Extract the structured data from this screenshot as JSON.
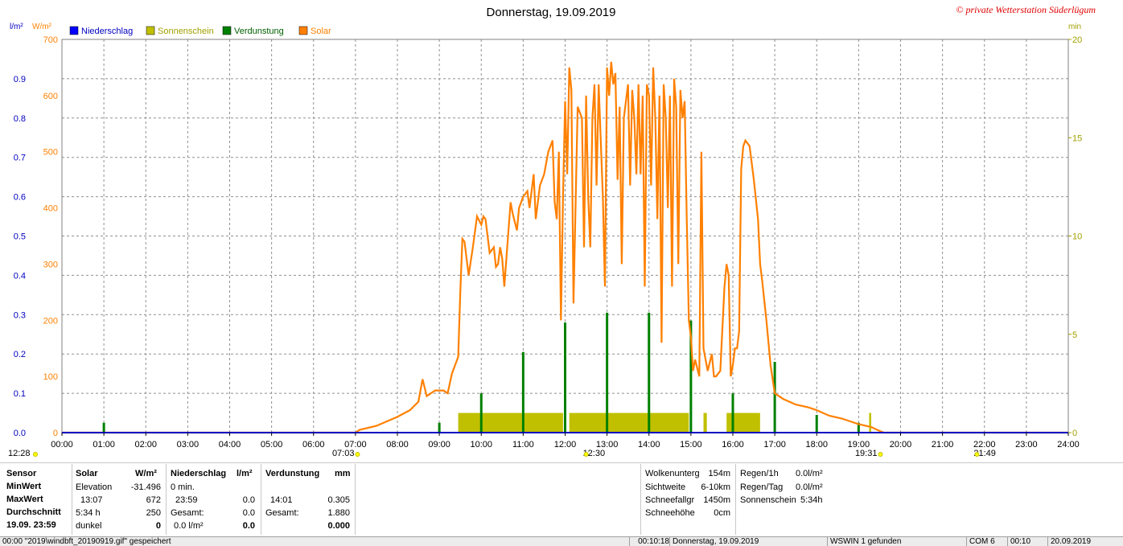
{
  "header": {
    "title": "Donnerstag, 19.09.2019",
    "copyright": "© private Wetterstation Süderlügum",
    "left_unit_1": "l/m²",
    "left_unit_2": "W/m²",
    "right_unit": "min"
  },
  "colors": {
    "niederschlag": "#0000ff",
    "sonnenschein": "#c0c000",
    "verdunstung": "#008000",
    "solar": "#ff8000"
  },
  "chart_data": {
    "type": "line",
    "title": "Donnerstag, 19.09.2019",
    "legend": [
      "Niederschlag",
      "Sonnenschein",
      "Verdunstung",
      "Solar"
    ],
    "legend_position": "top-left",
    "grid": true,
    "x_ticks": [
      "00:00",
      "01:00",
      "02:00",
      "03:00",
      "04:00",
      "05:00",
      "06:00",
      "07:00",
      "08:00",
      "09:00",
      "10:00",
      "11:00",
      "12:00",
      "13:00",
      "14:00",
      "15:00",
      "16:00",
      "17:00",
      "18:00",
      "19:00",
      "20:00",
      "21:00",
      "22:00",
      "23:00",
      "24:00"
    ],
    "y_left_precip_ticks": [
      "0.0",
      "0.1",
      "0.2",
      "0.3",
      "0.4",
      "0.5",
      "0.6",
      "0.7",
      "0.8",
      "0.9"
    ],
    "y_left_precip_range": [
      0,
      1.0
    ],
    "y_left_solar_ticks": [
      "0",
      "100",
      "200",
      "300",
      "400",
      "500",
      "600",
      "700"
    ],
    "y_left_solar_range": [
      0,
      700
    ],
    "y_right_ticks": [
      "0",
      "5",
      "10",
      "15",
      "20"
    ],
    "y_right_range": [
      0,
      20
    ],
    "sun_markers": [
      {
        "label": "12:28",
        "hour": 0.0
      },
      {
        "label": "07:03",
        "hour": 7.05
      },
      {
        "label": "12:30",
        "hour": 12.5
      },
      {
        "label": "19:31",
        "hour": 19.52
      },
      {
        "label": "21:49",
        "hour": 21.82
      }
    ],
    "solar": {
      "name": "Solar",
      "unit": "W/m²",
      "points": [
        [
          0,
          0
        ],
        [
          7.0,
          0
        ],
        [
          7.1,
          5
        ],
        [
          7.5,
          12
        ],
        [
          8.0,
          28
        ],
        [
          8.3,
          40
        ],
        [
          8.5,
          55
        ],
        [
          8.6,
          95
        ],
        [
          8.7,
          65
        ],
        [
          8.9,
          75
        ],
        [
          9.1,
          75
        ],
        [
          9.2,
          70
        ],
        [
          9.3,
          105
        ],
        [
          9.45,
          135
        ],
        [
          9.5,
          250
        ],
        [
          9.55,
          345
        ],
        [
          9.6,
          340
        ],
        [
          9.7,
          280
        ],
        [
          9.8,
          330
        ],
        [
          9.9,
          385
        ],
        [
          10.0,
          370
        ],
        [
          10.05,
          385
        ],
        [
          10.1,
          380
        ],
        [
          10.2,
          320
        ],
        [
          10.3,
          330
        ],
        [
          10.35,
          295
        ],
        [
          10.4,
          300
        ],
        [
          10.45,
          330
        ],
        [
          10.5,
          310
        ],
        [
          10.55,
          260
        ],
        [
          10.6,
          310
        ],
        [
          10.7,
          410
        ],
        [
          10.75,
          390
        ],
        [
          10.85,
          360
        ],
        [
          10.9,
          400
        ],
        [
          11.0,
          420
        ],
        [
          11.1,
          430
        ],
        [
          11.15,
          400
        ],
        [
          11.25,
          460
        ],
        [
          11.3,
          380
        ],
        [
          11.4,
          440
        ],
        [
          11.5,
          460
        ],
        [
          11.6,
          500
        ],
        [
          11.7,
          520
        ],
        [
          11.75,
          410
        ],
        [
          11.8,
          380
        ],
        [
          11.85,
          500
        ],
        [
          11.9,
          200
        ],
        [
          11.95,
          420
        ],
        [
          12.0,
          590
        ],
        [
          12.05,
          460
        ],
        [
          12.1,
          650
        ],
        [
          12.15,
          610
        ],
        [
          12.2,
          230
        ],
        [
          12.3,
          580
        ],
        [
          12.4,
          560
        ],
        [
          12.45,
          330
        ],
        [
          12.5,
          600
        ],
        [
          12.55,
          420
        ],
        [
          12.6,
          330
        ],
        [
          12.65,
          560
        ],
        [
          12.7,
          620
        ],
        [
          12.75,
          440
        ],
        [
          12.8,
          620
        ],
        [
          12.9,
          420
        ],
        [
          12.95,
          260
        ],
        [
          13.0,
          650
        ],
        [
          13.05,
          600
        ],
        [
          13.1,
          660
        ],
        [
          13.15,
          620
        ],
        [
          13.2,
          640
        ],
        [
          13.25,
          450
        ],
        [
          13.3,
          580
        ],
        [
          13.35,
          300
        ],
        [
          13.4,
          560
        ],
        [
          13.5,
          620
        ],
        [
          13.55,
          440
        ],
        [
          13.6,
          610
        ],
        [
          13.65,
          560
        ],
        [
          13.7,
          460
        ],
        [
          13.75,
          620
        ],
        [
          13.8,
          460
        ],
        [
          13.85,
          600
        ],
        [
          13.9,
          260
        ],
        [
          13.95,
          620
        ],
        [
          14.0,
          600
        ],
        [
          14.05,
          440
        ],
        [
          14.1,
          650
        ],
        [
          14.15,
          560
        ],
        [
          14.2,
          380
        ],
        [
          14.25,
          600
        ],
        [
          14.3,
          160
        ],
        [
          14.35,
          620
        ],
        [
          14.4,
          560
        ],
        [
          14.45,
          400
        ],
        [
          14.5,
          600
        ],
        [
          14.55,
          260
        ],
        [
          14.6,
          630
        ],
        [
          14.65,
          580
        ],
        [
          14.7,
          300
        ],
        [
          14.75,
          610
        ],
        [
          14.8,
          560
        ],
        [
          14.85,
          590
        ],
        [
          14.9,
          380
        ],
        [
          14.95,
          200
        ],
        [
          15.0,
          170
        ],
        [
          15.05,
          110
        ],
        [
          15.1,
          130
        ],
        [
          15.2,
          100
        ],
        [
          15.25,
          500
        ],
        [
          15.3,
          150
        ],
        [
          15.4,
          110
        ],
        [
          15.5,
          140
        ],
        [
          15.55,
          100
        ],
        [
          15.6,
          100
        ],
        [
          15.7,
          110
        ],
        [
          15.8,
          260
        ],
        [
          15.85,
          300
        ],
        [
          15.9,
          280
        ],
        [
          15.95,
          100
        ],
        [
          16.0,
          120
        ],
        [
          16.05,
          150
        ],
        [
          16.1,
          150
        ],
        [
          16.15,
          180
        ],
        [
          16.2,
          470
        ],
        [
          16.25,
          510
        ],
        [
          16.3,
          520
        ],
        [
          16.4,
          510
        ],
        [
          16.5,
          450
        ],
        [
          16.6,
          380
        ],
        [
          16.65,
          300
        ],
        [
          16.7,
          270
        ],
        [
          16.8,
          200
        ],
        [
          16.9,
          120
        ],
        [
          17.0,
          70
        ],
        [
          17.2,
          60
        ],
        [
          17.5,
          50
        ],
        [
          17.8,
          45
        ],
        [
          18.0,
          40
        ],
        [
          18.3,
          30
        ],
        [
          18.6,
          25
        ],
        [
          19.0,
          15
        ],
        [
          19.3,
          10
        ],
        [
          19.5,
          3
        ],
        [
          19.6,
          0
        ],
        [
          24,
          0
        ]
      ]
    },
    "sonnenschein": {
      "name": "Sonnenschein",
      "unit": "min",
      "bars": [
        {
          "start": 9.45,
          "end": 11.95,
          "value": 1
        },
        {
          "start": 12.1,
          "end": 14.95,
          "value": 1
        },
        {
          "start": 15.3,
          "end": 15.38,
          "value": 1
        },
        {
          "start": 15.85,
          "end": 16.65,
          "value": 1
        },
        {
          "start": 19.25,
          "end": 19.3,
          "value": 1
        }
      ]
    },
    "verdunstung": {
      "name": "Verdunstung",
      "unit": "mm",
      "bars": [
        {
          "hour": 1.0,
          "value": 0.025
        },
        {
          "hour": 9.0,
          "value": 0.025
        },
        {
          "hour": 10.0,
          "value": 0.1
        },
        {
          "hour": 11.0,
          "value": 0.205
        },
        {
          "hour": 12.0,
          "value": 0.28
        },
        {
          "hour": 13.0,
          "value": 0.305
        },
        {
          "hour": 14.0,
          "value": 0.305
        },
        {
          "hour": 15.0,
          "value": 0.285
        },
        {
          "hour": 16.0,
          "value": 0.1
        },
        {
          "hour": 17.0,
          "value": 0.18
        },
        {
          "hour": 18.0,
          "value": 0.045
        },
        {
          "hour": 19.0,
          "value": 0.025
        }
      ]
    }
  },
  "stats": {
    "col1": [
      "Sensor",
      "MinWert",
      "MaxWert",
      "Durchschnitt",
      "19.09. 23:59"
    ],
    "solar": {
      "header": "Solar",
      "unit": "W/m²",
      "rows": [
        [
          "Elevation",
          "-31.496"
        ],
        [
          "13:07",
          "672"
        ],
        [
          "5:34 h",
          "250"
        ],
        [
          "dunkel",
          "0"
        ]
      ]
    },
    "niederschlag": {
      "header": "Niederschlag",
      "unit": "l/m²",
      "rows": [
        [
          "0 min.",
          ""
        ],
        [
          "23:59",
          "0.0"
        ],
        [
          "Gesamt:",
          "0.0"
        ],
        [
          "0.0 l/m²",
          "0.0"
        ]
      ]
    },
    "verdunstung": {
      "header": "Verdunstung",
      "unit": "mm",
      "rows": [
        [
          "",
          ""
        ],
        [
          "14:01",
          "0.305"
        ],
        [
          "Gesamt:",
          "1.880"
        ],
        [
          "",
          "0.000"
        ]
      ]
    },
    "weather": [
      [
        "Wolkenunterg",
        "154m"
      ],
      [
        "Sichtweite",
        "6-10km"
      ],
      [
        "Schneefallgr",
        "1450m"
      ],
      [
        "Schneehöhe",
        "0cm"
      ]
    ],
    "rain": [
      [
        "Regen/1h",
        "0.0l/m²"
      ],
      [
        "Regen/Tag",
        "0.0l/m²"
      ],
      [
        "Sonnenschein",
        "5:34h"
      ]
    ]
  },
  "statusbar": {
    "file": "00:00  \"2019\\windbft_20190919.gif\" gespeichert",
    "time1": "00:10:18",
    "date": "Donnerstag, 19.09.2019",
    "device": "WSWIN 1 gefunden",
    "com": "COM 6",
    "time2": "00:10",
    "date2": "20.09.2019"
  }
}
